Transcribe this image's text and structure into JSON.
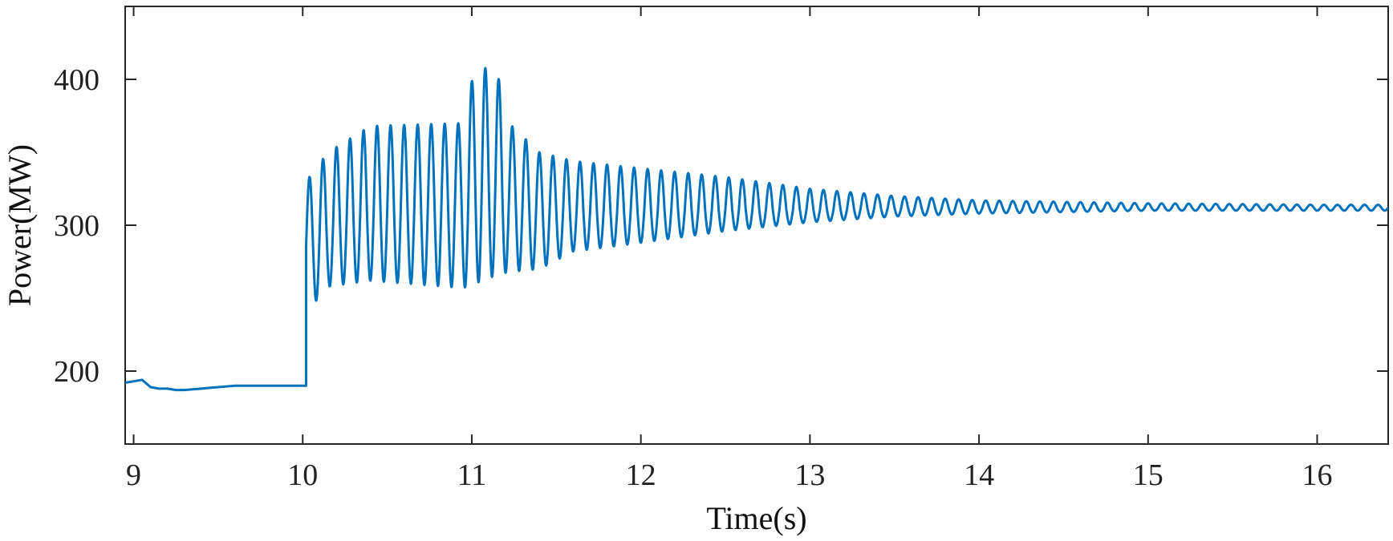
{
  "chart_data": {
    "type": "line",
    "title": "",
    "xlabel": "Time(s)",
    "ylabel": "Power(MW)",
    "xlim": [
      8.95,
      16.42
    ],
    "ylim": [
      150,
      450
    ],
    "xticks": [
      9,
      10,
      11,
      12,
      13,
      14,
      15,
      16
    ],
    "xtick_labels": [
      "9",
      "10",
      "11",
      "12",
      "13",
      "14",
      "15",
      "16"
    ],
    "yticks": [
      200,
      300,
      400
    ],
    "ytick_labels": [
      "200",
      "300",
      "400"
    ],
    "grid": false,
    "legend": "none",
    "line_color": "#0072BD",
    "series": [
      {
        "x": [
          8.95,
          9.0,
          9.05,
          9.1,
          9.15,
          9.2,
          9.25,
          9.3,
          9.4,
          9.5,
          9.6,
          9.7,
          9.8,
          9.9,
          10.0,
          10.02
        ],
        "y": [
          192,
          193,
          194,
          189,
          188,
          188,
          187,
          187,
          188,
          189,
          190,
          190,
          190,
          190,
          190,
          190
        ]
      }
    ],
    "oscillation": {
      "start_time": 10.02,
      "end_time": 16.42,
      "frequency_hz": 12.5,
      "envelope": [
        {
          "t": 10.02,
          "center": 285,
          "upper": 330,
          "lower": 240
        },
        {
          "t": 10.15,
          "center": 300,
          "upper": 350,
          "lower": 258
        },
        {
          "t": 10.4,
          "center": 310,
          "upper": 368,
          "lower": 262
        },
        {
          "t": 10.95,
          "center": 313,
          "upper": 370,
          "lower": 257
        },
        {
          "t": 11.02,
          "center": 330,
          "upper": 410,
          "lower": 260
        },
        {
          "t": 11.15,
          "center": 330,
          "upper": 405,
          "lower": 266
        },
        {
          "t": 11.22,
          "center": 318,
          "upper": 370,
          "lower": 268
        },
        {
          "t": 11.4,
          "center": 308,
          "upper": 350,
          "lower": 270
        },
        {
          "t": 11.6,
          "center": 310,
          "upper": 344,
          "lower": 282
        },
        {
          "t": 12.0,
          "center": 310,
          "upper": 339,
          "lower": 288
        },
        {
          "t": 12.5,
          "center": 311,
          "upper": 333,
          "lower": 296
        },
        {
          "t": 13.0,
          "center": 311,
          "upper": 325,
          "lower": 302
        },
        {
          "t": 13.5,
          "center": 312,
          "upper": 320,
          "lower": 306
        },
        {
          "t": 14.0,
          "center": 312,
          "upper": 317,
          "lower": 308
        },
        {
          "t": 15.0,
          "center": 312,
          "upper": 315,
          "lower": 310
        },
        {
          "t": 16.0,
          "center": 312,
          "upper": 314,
          "lower": 310
        },
        {
          "t": 16.42,
          "center": 312,
          "upper": 314,
          "lower": 310
        }
      ]
    }
  }
}
